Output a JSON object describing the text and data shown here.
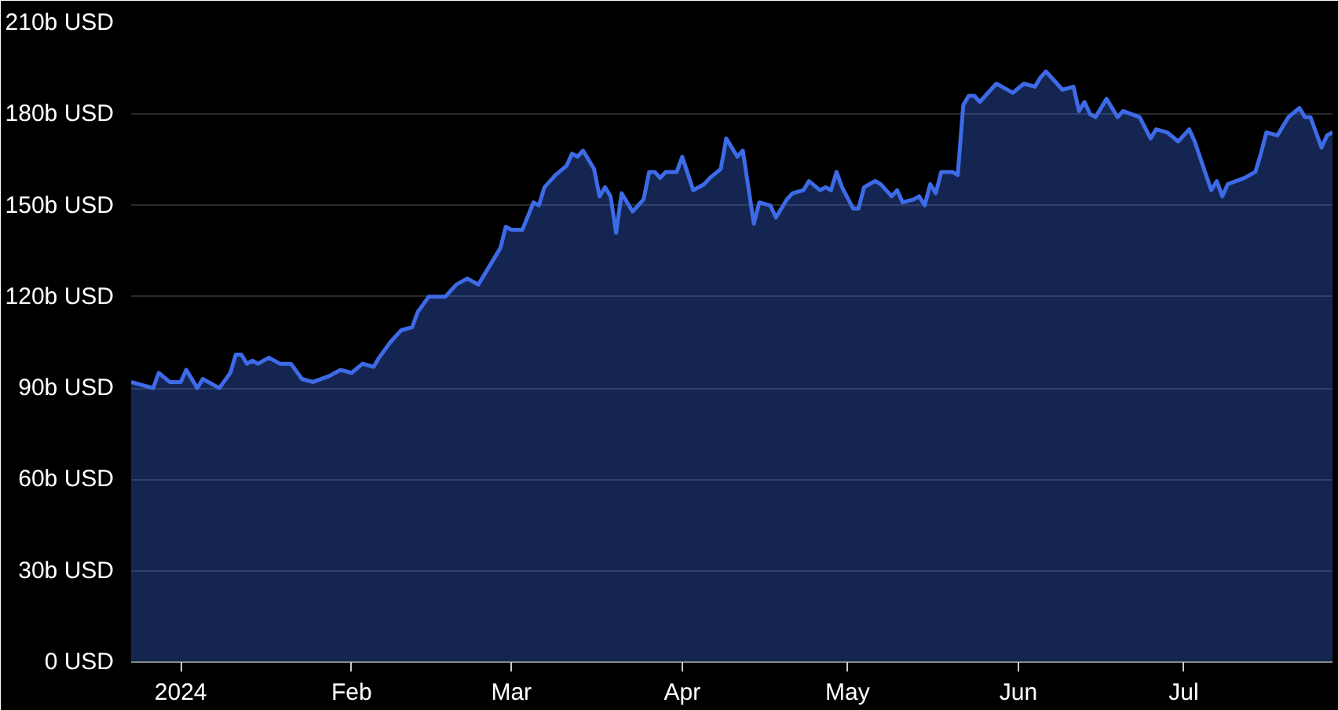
{
  "chart_data": {
    "type": "area",
    "grid": "y",
    "xlim": [
      "2023-12-23",
      "2024-07-28"
    ],
    "ylim": [
      0,
      210
    ],
    "xticks": [
      {
        "value": "2024-01-01",
        "label": "2024"
      },
      {
        "value": "2024-02-01",
        "label": "Feb"
      },
      {
        "value": "2024-03-01",
        "label": "Mar"
      },
      {
        "value": "2024-04-01",
        "label": "Apr"
      },
      {
        "value": "2024-05-01",
        "label": "May"
      },
      {
        "value": "2024-06-01",
        "label": "Jun"
      },
      {
        "value": "2024-07-01",
        "label": "Jul"
      }
    ],
    "yticks": [
      {
        "value": 0,
        "label": "0 USD"
      },
      {
        "value": 30,
        "label": "30b USD"
      },
      {
        "value": 60,
        "label": "60b USD"
      },
      {
        "value": 90,
        "label": "90b USD"
      },
      {
        "value": 120,
        "label": "120b USD"
      },
      {
        "value": 150,
        "label": "150b USD"
      },
      {
        "value": 180,
        "label": "180b USD"
      },
      {
        "value": 210,
        "label": "210b USD"
      }
    ],
    "x": [
      "2023-12-23",
      "2023-12-27",
      "2023-12-28",
      "2023-12-30",
      "2024-01-01",
      "2024-01-02",
      "2024-01-04",
      "2024-01-05",
      "2024-01-08",
      "2024-01-10",
      "2024-01-11",
      "2024-01-12",
      "2024-01-13",
      "2024-01-14",
      "2024-01-15",
      "2024-01-17",
      "2024-01-19",
      "2024-01-21",
      "2024-01-23",
      "2024-01-25",
      "2024-01-28",
      "2024-01-29",
      "2024-01-30",
      "2024-02-01",
      "2024-02-03",
      "2024-02-05",
      "2024-02-06",
      "2024-02-08",
      "2024-02-10",
      "2024-02-12",
      "2024-02-13",
      "2024-02-15",
      "2024-02-18",
      "2024-02-20",
      "2024-02-22",
      "2024-02-24",
      "2024-02-26",
      "2024-02-28",
      "2024-02-29",
      "2024-03-01",
      "2024-03-03",
      "2024-03-05",
      "2024-03-06",
      "2024-03-07",
      "2024-03-09",
      "2024-03-11",
      "2024-03-12",
      "2024-03-13",
      "2024-03-14",
      "2024-03-16",
      "2024-03-17",
      "2024-03-18",
      "2024-03-19",
      "2024-03-20",
      "2024-03-21",
      "2024-03-23",
      "2024-03-25",
      "2024-03-26",
      "2024-03-27",
      "2024-03-28",
      "2024-03-29",
      "2024-03-31",
      "2024-04-01",
      "2024-04-03",
      "2024-04-05",
      "2024-04-06",
      "2024-04-08",
      "2024-04-09",
      "2024-04-11",
      "2024-04-12",
      "2024-04-14",
      "2024-04-15",
      "2024-04-17",
      "2024-04-18",
      "2024-04-20",
      "2024-04-21",
      "2024-04-23",
      "2024-04-24",
      "2024-04-26",
      "2024-04-27",
      "2024-04-28",
      "2024-04-29",
      "2024-04-30",
      "2024-05-02",
      "2024-05-03",
      "2024-05-04",
      "2024-05-06",
      "2024-05-07",
      "2024-05-09",
      "2024-05-10",
      "2024-05-11",
      "2024-05-13",
      "2024-05-14",
      "2024-05-15",
      "2024-05-16",
      "2024-05-17",
      "2024-05-18",
      "2024-05-20",
      "2024-05-21",
      "2024-05-22",
      "2024-05-23",
      "2024-05-24",
      "2024-05-25",
      "2024-05-26",
      "2024-05-28",
      "2024-05-29",
      "2024-05-31",
      "2024-06-02",
      "2024-06-04",
      "2024-06-05",
      "2024-06-06",
      "2024-06-07",
      "2024-06-09",
      "2024-06-11",
      "2024-06-12",
      "2024-06-13",
      "2024-06-14",
      "2024-06-15",
      "2024-06-17",
      "2024-06-19",
      "2024-06-20",
      "2024-06-23",
      "2024-06-25",
      "2024-06-26",
      "2024-06-28",
      "2024-06-30",
      "2024-07-02",
      "2024-07-03",
      "2024-07-06",
      "2024-07-07",
      "2024-07-08",
      "2024-07-09",
      "2024-07-12",
      "2024-07-14",
      "2024-07-15",
      "2024-07-16",
      "2024-07-18",
      "2024-07-20",
      "2024-07-22",
      "2024-07-23",
      "2024-07-24",
      "2024-07-26",
      "2024-07-27",
      "2024-07-28"
    ],
    "series": [
      {
        "color": "#3d6be8",
        "values": [
          92,
          90,
          95,
          92,
          92,
          96,
          90,
          93,
          90,
          95,
          101,
          101,
          98,
          99,
          98,
          100,
          98,
          98,
          93,
          92,
          94,
          95,
          96,
          95,
          98,
          97,
          100,
          105,
          109,
          110,
          115,
          120,
          120,
          124,
          126,
          124,
          130,
          136,
          143,
          142,
          142,
          151,
          150,
          156,
          160,
          163,
          167,
          166,
          168,
          162,
          153,
          156,
          153,
          141,
          154,
          148,
          152,
          161,
          161,
          159,
          161,
          161,
          166,
          155,
          157,
          159,
          162,
          172,
          166,
          168,
          144,
          151,
          150,
          146,
          152,
          154,
          155,
          158,
          155,
          156,
          155,
          161,
          156,
          149,
          149,
          156,
          158,
          157,
          153,
          155,
          151,
          152,
          153,
          150,
          157,
          154,
          161,
          161,
          160,
          183,
          186,
          186,
          184,
          186,
          190,
          189,
          187,
          190,
          189,
          192,
          194,
          192,
          188,
          189,
          181,
          184,
          180,
          179,
          185,
          179,
          181,
          179,
          172,
          175,
          174,
          171,
          175,
          171,
          155,
          158,
          153,
          157,
          159,
          161,
          167,
          174,
          173,
          179,
          182,
          179,
          179,
          169,
          173,
          174
        ]
      }
    ]
  }
}
